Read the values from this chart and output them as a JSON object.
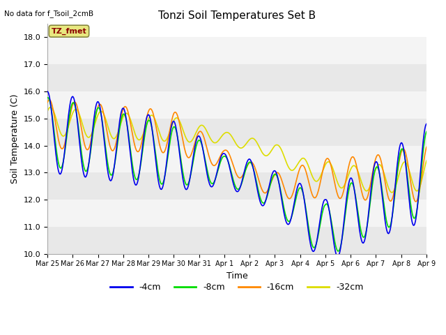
{
  "title": "Tonzi Soil Temperatures Set B",
  "no_data_text": "No data for f_Tsoil_2cmB",
  "xlabel": "Time",
  "ylabel": "Soil Temperature (C)",
  "ylim": [
    10.0,
    18.5
  ],
  "yticks": [
    10.0,
    11.0,
    12.0,
    13.0,
    14.0,
    15.0,
    16.0,
    17.0,
    18.0
  ],
  "legend_label": "TZ_fmet",
  "line_colors": {
    "-4cm": "#0000ee",
    "-8cm": "#00dd00",
    "-16cm": "#ff8800",
    "-32cm": "#dddd00"
  },
  "bg_color": "#ffffff",
  "band_colors": [
    "#e8e8e8",
    "#f4f4f4"
  ],
  "x_tick_labels": [
    "Mar 25",
    "Mar 26",
    "Mar 27",
    "Mar 28",
    "Mar 29",
    "Mar 30",
    "Mar 31",
    "Apr 1",
    "Apr 2",
    "Apr 3",
    "Apr 4",
    "Apr 5",
    "Apr 6",
    "Apr 7",
    "Apr 8",
    "Apr 9"
  ]
}
